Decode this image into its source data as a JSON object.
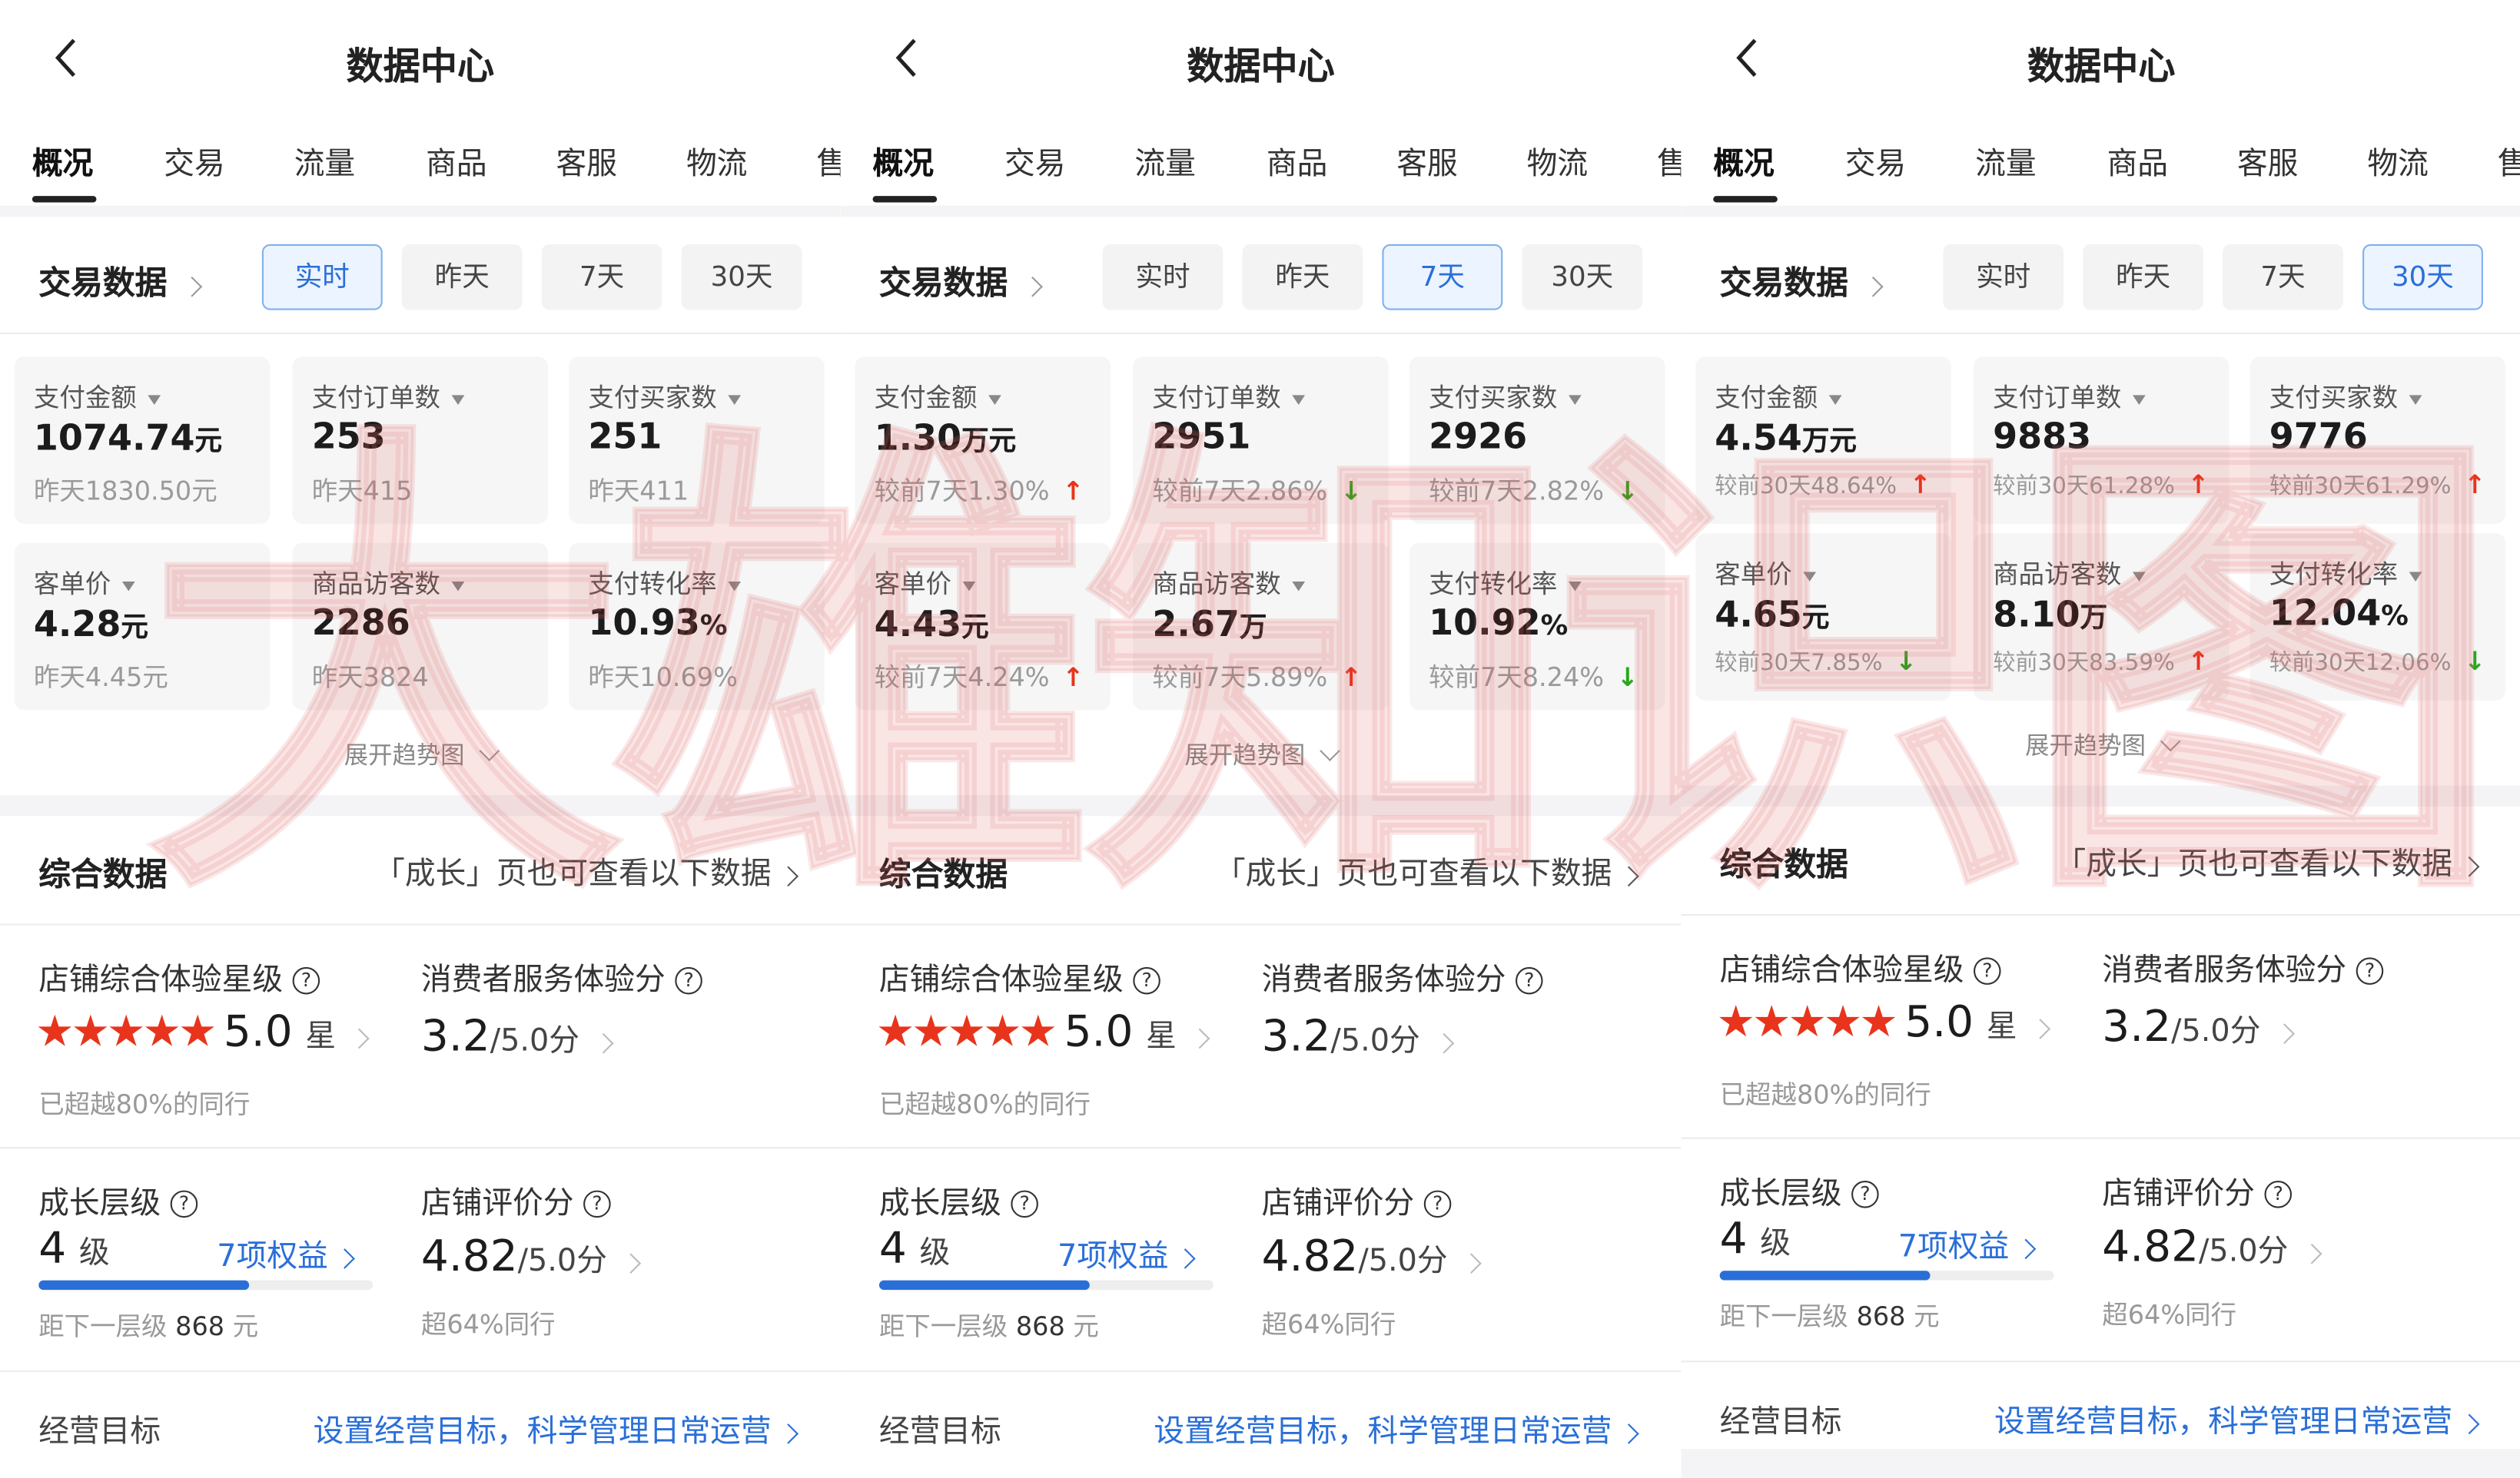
{
  "watermark": "大雄知识图",
  "colors": {
    "accent_blue": "#2a6fd8",
    "up_red": "#e8341c",
    "down_green": "#2aa71d",
    "star_red": "#e8341c"
  },
  "panels": [
    {
      "header": {
        "back_icon": "chevron-left-icon",
        "title": "数据中心"
      },
      "tabs": [
        "概况",
        "交易",
        "流量",
        "商品",
        "客服",
        "物流",
        "售"
      ],
      "active_tab": 0,
      "trade": {
        "title": "交易数据",
        "ranges": [
          "实时",
          "昨天",
          "7天",
          "30天"
        ],
        "active_range": 0,
        "cards": [
          {
            "label": "支付金额",
            "value": "1074.74",
            "unit": "元",
            "sub": "昨天1830.50元",
            "trend": null
          },
          {
            "label": "支付订单数",
            "value": "253",
            "unit": "",
            "sub": "昨天415",
            "trend": null
          },
          {
            "label": "支付买家数",
            "value": "251",
            "unit": "",
            "sub": "昨天411",
            "trend": null
          },
          {
            "label": "客单价",
            "value": "4.28",
            "unit": "元",
            "sub": "昨天4.45元",
            "trend": null
          },
          {
            "label": "商品访客数",
            "value": "2286",
            "unit": "",
            "sub": "昨天3824",
            "trend": null
          },
          {
            "label": "支付转化率",
            "value": "10.93",
            "unit": "%",
            "sub": "昨天10.69%",
            "trend": null
          }
        ],
        "expand": "展开趋势图"
      },
      "overall": {
        "title": "综合数据",
        "link": "「成长」页也可查看以下数据",
        "star_label": "店铺综合体验星级",
        "stars": 5,
        "star_value": "5.0",
        "star_unit": "星",
        "star_note": "已超越80%的同行",
        "service_label": "消费者服务体验分",
        "service_value": "3.2",
        "service_unit": "/5.0分",
        "growth_label": "成长层级",
        "growth_value": "4",
        "growth_unit": "级",
        "benefits": "7项权益",
        "growth_progress": 0.63,
        "growth_note_prefix": "距下一层级",
        "growth_note_value": "868",
        "growth_note_unit": "元",
        "review_label": "店铺评价分",
        "review_value": "4.82",
        "review_unit": "/5.0分",
        "review_note": "超64%同行",
        "goal_label": "经营目标",
        "goal_link": "设置经营目标，科学管理日常运营"
      }
    },
    {
      "header": {
        "back_icon": "chevron-left-icon",
        "title": "数据中心"
      },
      "tabs": [
        "概况",
        "交易",
        "流量",
        "商品",
        "客服",
        "物流",
        "售"
      ],
      "active_tab": 0,
      "trade": {
        "title": "交易数据",
        "ranges": [
          "实时",
          "昨天",
          "7天",
          "30天"
        ],
        "active_range": 2,
        "cards": [
          {
            "label": "支付金额",
            "value": "1.30",
            "unit": "万元",
            "sub": "较前7天1.30%",
            "trend": "up"
          },
          {
            "label": "支付订单数",
            "value": "2951",
            "unit": "",
            "sub": "较前7天2.86%",
            "trend": "down"
          },
          {
            "label": "支付买家数",
            "value": "2926",
            "unit": "",
            "sub": "较前7天2.82%",
            "trend": "down"
          },
          {
            "label": "客单价",
            "value": "4.43",
            "unit": "元",
            "sub": "较前7天4.24%",
            "trend": "up"
          },
          {
            "label": "商品访客数",
            "value": "2.67",
            "unit": "万",
            "sub": "较前7天5.89%",
            "trend": "up"
          },
          {
            "label": "支付转化率",
            "value": "10.92",
            "unit": "%",
            "sub": "较前7天8.24%",
            "trend": "down"
          }
        ],
        "expand": "展开趋势图"
      },
      "overall": {
        "title": "综合数据",
        "link": "「成长」页也可查看以下数据",
        "star_label": "店铺综合体验星级",
        "stars": 5,
        "star_value": "5.0",
        "star_unit": "星",
        "star_note": "已超越80%的同行",
        "service_label": "消费者服务体验分",
        "service_value": "3.2",
        "service_unit": "/5.0分",
        "growth_label": "成长层级",
        "growth_value": "4",
        "growth_unit": "级",
        "benefits": "7项权益",
        "growth_progress": 0.63,
        "growth_note_prefix": "距下一层级",
        "growth_note_value": "868",
        "growth_note_unit": "元",
        "review_label": "店铺评价分",
        "review_value": "4.82",
        "review_unit": "/5.0分",
        "review_note": "超64%同行",
        "goal_label": "经营目标",
        "goal_link": "设置经营目标，科学管理日常运营"
      }
    },
    {
      "header": {
        "back_icon": "chevron-left-icon",
        "title": "数据中心"
      },
      "tabs": [
        "概况",
        "交易",
        "流量",
        "商品",
        "客服",
        "物流",
        "售"
      ],
      "active_tab": 0,
      "trade": {
        "title": "交易数据",
        "ranges": [
          "实时",
          "昨天",
          "7天",
          "30天"
        ],
        "active_range": 3,
        "cards": [
          {
            "label": "支付金额",
            "value": "4.54",
            "unit": "万元",
            "sub": "较前30天48.64%",
            "trend": "up"
          },
          {
            "label": "支付订单数",
            "value": "9883",
            "unit": "",
            "sub": "较前30天61.28%",
            "trend": "up"
          },
          {
            "label": "支付买家数",
            "value": "9776",
            "unit": "",
            "sub": "较前30天61.29%",
            "trend": "up"
          },
          {
            "label": "客单价",
            "value": "4.65",
            "unit": "元",
            "sub": "较前30天7.85%",
            "trend": "down"
          },
          {
            "label": "商品访客数",
            "value": "8.10",
            "unit": "万",
            "sub": "较前30天83.59%",
            "trend": "up"
          },
          {
            "label": "支付转化率",
            "value": "12.04",
            "unit": "%",
            "sub": "较前30天12.06%",
            "trend": "down"
          }
        ],
        "expand": "展开趋势图"
      },
      "overall": {
        "title": "综合数据",
        "link": "「成长」页也可查看以下数据",
        "star_label": "店铺综合体验星级",
        "stars": 5,
        "star_value": "5.0",
        "star_unit": "星",
        "star_note": "已超越80%的同行",
        "service_label": "消费者服务体验分",
        "service_value": "3.2",
        "service_unit": "/5.0分",
        "growth_label": "成长层级",
        "growth_value": "4",
        "growth_unit": "级",
        "benefits": "7项权益",
        "growth_progress": 0.63,
        "growth_note_prefix": "距下一层级",
        "growth_note_value": "868",
        "growth_note_unit": "元",
        "review_label": "店铺评价分",
        "review_value": "4.82",
        "review_unit": "/5.0分",
        "review_note": "超64%同行",
        "goal_label": "经营目标",
        "goal_link": "设置经营目标，科学管理日常运营"
      }
    }
  ]
}
